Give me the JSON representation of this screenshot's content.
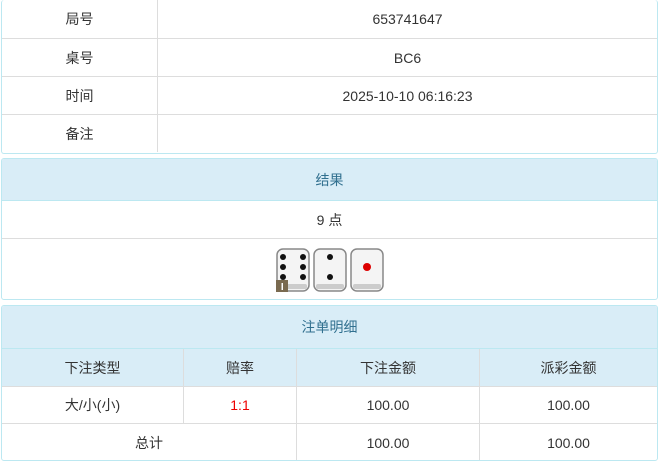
{
  "info": {
    "rows": [
      {
        "label": "局号",
        "value": "653741647"
      },
      {
        "label": "桌号",
        "value": "BC6"
      },
      {
        "label": "时间",
        "value": "2025-10-10 06:16:23"
      },
      {
        "label": "备注"
      }
    ]
  },
  "result": {
    "title": "结果",
    "total": "9 点",
    "dice": [
      6,
      2,
      1
    ]
  },
  "bets": {
    "title": "注单明细",
    "columns": [
      "下注类型",
      "赔率",
      "下注金额",
      "派彩金额"
    ],
    "rows": [
      [
        "大/小(小)",
        "1:1",
        "100.00",
        "100.00"
      ]
    ],
    "total": {
      "label": "总计",
      "stake": "100.00",
      "payout": "100.00"
    }
  }
}
